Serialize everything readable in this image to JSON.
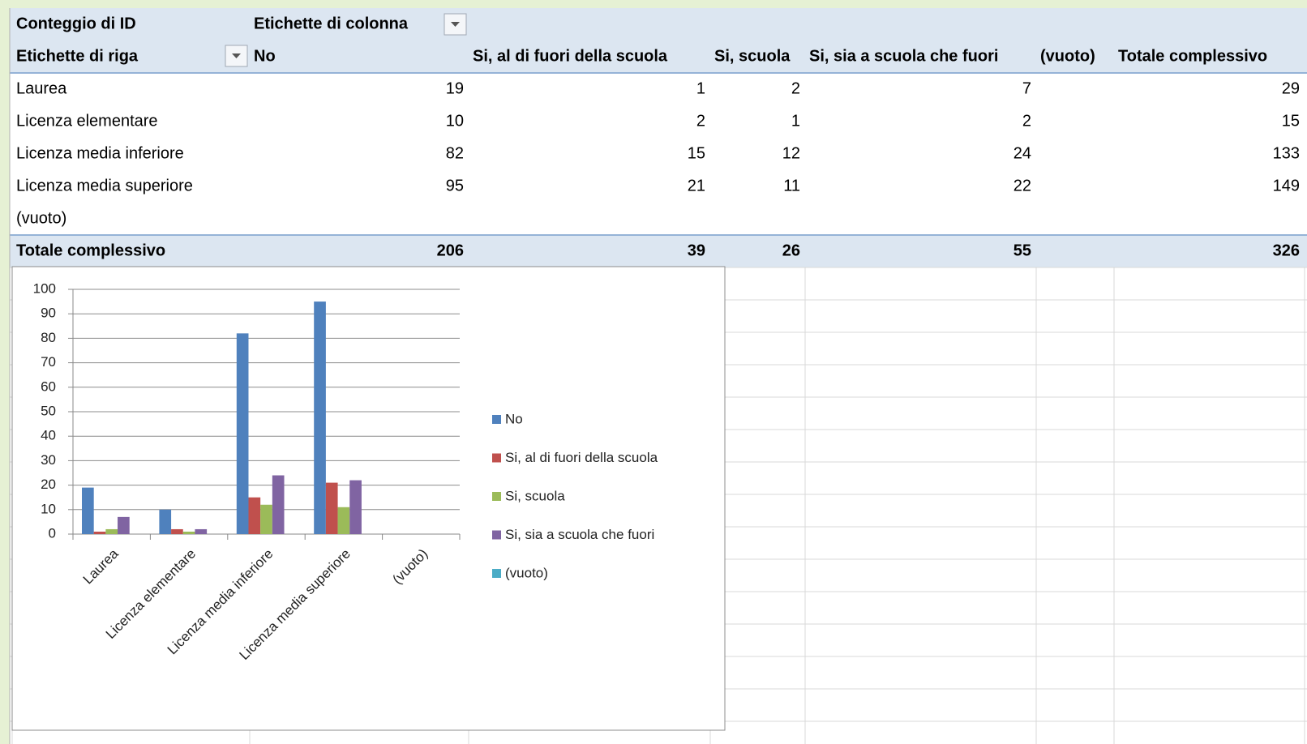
{
  "table": {
    "corner": "Conteggio di ID",
    "column_field": "Etichette di colonna",
    "row_field": "Etichette di riga",
    "columns": [
      "No",
      "Si, al di fuori della scuola",
      "Si, scuola",
      "Si, sia a scuola che fuori",
      "(vuoto)",
      "Totale complessivo"
    ],
    "rows": [
      {
        "label": "Laurea",
        "values": [
          19,
          1,
          2,
          7,
          null,
          29
        ]
      },
      {
        "label": "Licenza elementare",
        "values": [
          10,
          2,
          1,
          2,
          null,
          15
        ]
      },
      {
        "label": "Licenza media inferiore",
        "values": [
          82,
          15,
          12,
          24,
          null,
          133
        ]
      },
      {
        "label": "Licenza media superiore",
        "values": [
          95,
          21,
          11,
          22,
          null,
          149
        ]
      },
      {
        "label": "(vuoto)",
        "values": [
          null,
          null,
          null,
          null,
          null,
          null
        ]
      }
    ],
    "total": {
      "label": "Totale complessivo",
      "values": [
        206,
        39,
        26,
        55,
        null,
        326
      ]
    }
  },
  "chart_data": {
    "type": "bar",
    "categories": [
      "Laurea",
      "Licenza elementare",
      "Licenza media inferiore",
      "Licenza media superiore",
      "(vuoto)"
    ],
    "series": [
      {
        "name": "No",
        "color": "#4f81bd",
        "values": [
          19,
          10,
          82,
          95,
          null
        ]
      },
      {
        "name": "Si, al di fuori della scuola",
        "color": "#c0504d",
        "values": [
          1,
          2,
          15,
          21,
          null
        ]
      },
      {
        "name": "Si, scuola",
        "color": "#9bbb59",
        "values": [
          2,
          1,
          12,
          11,
          null
        ]
      },
      {
        "name": "Si, sia a scuola che fuori",
        "color": "#8064a2",
        "values": [
          7,
          2,
          24,
          22,
          null
        ]
      },
      {
        "name": "(vuoto)",
        "color": "#4bacc6",
        "values": [
          null,
          null,
          null,
          null,
          null
        ]
      }
    ],
    "ylim": [
      0,
      100
    ],
    "yticks": [
      0,
      10,
      20,
      30,
      40,
      50,
      60,
      70,
      80,
      90,
      100
    ],
    "grid": true,
    "legend": "right"
  }
}
